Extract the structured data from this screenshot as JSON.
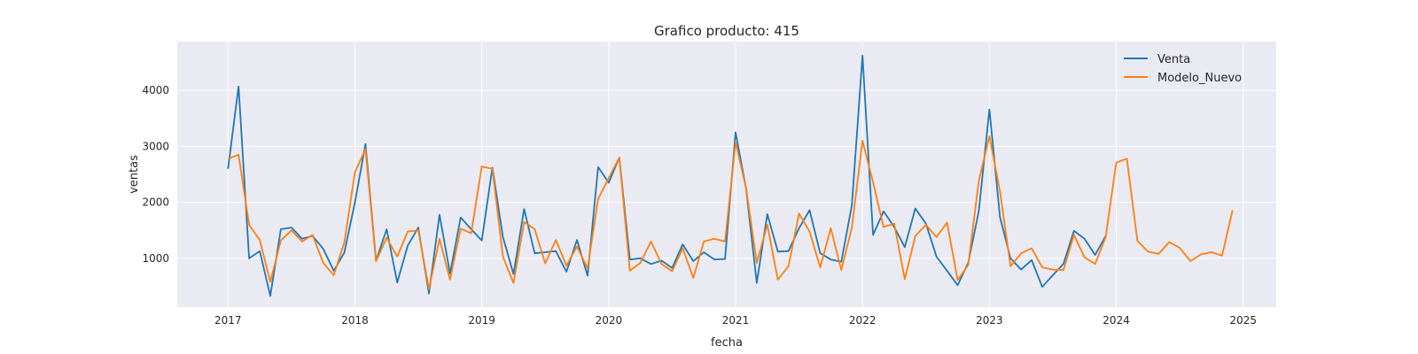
{
  "chart_data": {
    "type": "line",
    "title": "Grafico producto: 415",
    "xlabel": "fecha",
    "ylabel": "ventas",
    "xlim": [
      2016.6,
      2025.26
    ],
    "ylim": [
      130,
      4870
    ],
    "xticks": [
      2017,
      2018,
      2019,
      2020,
      2021,
      2022,
      2023,
      2024,
      2025
    ],
    "yticks": [
      1000,
      2000,
      3000,
      4000
    ],
    "grid": true,
    "legend": "top-right",
    "background": "#eaeaf2",
    "series": [
      {
        "name": "Venta",
        "color": "#1f77b4",
        "start": 2017.0,
        "step": 0.08333,
        "values": [
          2600,
          4070,
          1000,
          1130,
          330,
          1520,
          1550,
          1350,
          1400,
          1170,
          780,
          1100,
          2000,
          3040,
          960,
          1520,
          570,
          1230,
          1550,
          370,
          1780,
          730,
          1730,
          1520,
          1320,
          2620,
          1380,
          720,
          1880,
          1090,
          1110,
          1130,
          760,
          1330,
          690,
          2630,
          2350,
          2800,
          980,
          1000,
          900,
          960,
          830,
          1250,
          950,
          1110,
          980,
          990,
          3250,
          2240,
          560,
          1790,
          1120,
          1130,
          1540,
          1860,
          1090,
          980,
          940,
          1950,
          4620,
          1420,
          1840,
          1560,
          1200,
          1890,
          1620,
          1030,
          780,
          520,
          920,
          1840,
          3660,
          1740,
          1000,
          800,
          970,
          490,
          700,
          900,
          1490,
          1350,
          1060,
          1400
        ]
      },
      {
        "name": "Modelo_Nuevo",
        "color": "#ff7f0e",
        "start": 2017.0,
        "step": 0.08333,
        "values": [
          2780,
          2850,
          1600,
          1330,
          580,
          1320,
          1500,
          1300,
          1420,
          920,
          700,
          1280,
          2540,
          2950,
          950,
          1370,
          1030,
          1480,
          1500,
          450,
          1350,
          620,
          1530,
          1450,
          2640,
          2600,
          1030,
          560,
          1650,
          1520,
          910,
          1330,
          870,
          1210,
          820,
          2060,
          2430,
          2800,
          780,
          920,
          1300,
          900,
          770,
          1180,
          650,
          1300,
          1350,
          1300,
          3070,
          2250,
          920,
          1600,
          620,
          860,
          1800,
          1480,
          840,
          1540,
          790,
          1550,
          3100,
          2360,
          1560,
          1620,
          630,
          1400,
          1600,
          1380,
          1640,
          610,
          880,
          2380,
          3180,
          2200,
          860,
          1090,
          1180,
          840,
          800,
          790,
          1420,
          1020,
          900,
          1380,
          2710,
          2780,
          1310,
          1120,
          1080,
          1290,
          1190,
          950,
          1070,
          1110,
          1050,
          1860
        ]
      }
    ]
  }
}
